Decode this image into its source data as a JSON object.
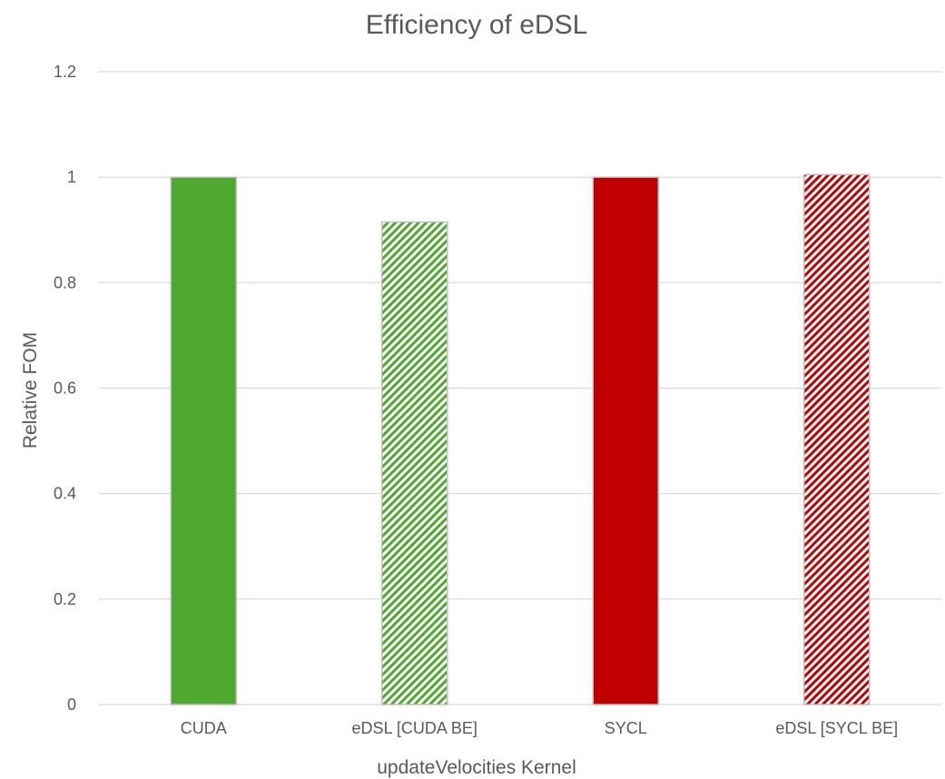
{
  "chart_data": {
    "type": "bar",
    "title": "Efficiency of eDSL",
    "xlabel": "updateVelocities Kernel",
    "ylabel": "Relative FOM",
    "ylim": [
      0,
      1.2
    ],
    "yticks": [
      "0",
      "0.2",
      "0.4",
      "0.6",
      "0.8",
      "1",
      "1.2"
    ],
    "grid": true,
    "legend": "none",
    "categories": [
      "CUDA",
      "eDSL [CUDA BE]",
      "SYCL",
      "eDSL [SYCL BE]"
    ],
    "values": [
      1.0,
      0.915,
      1.0,
      1.005
    ],
    "fills": [
      "solid",
      "hatched",
      "solid",
      "hatched"
    ],
    "colors": [
      "#4ea72e",
      "#4ea72e",
      "#c00000",
      "#c00000"
    ]
  },
  "colors": {
    "gridline": "#d9d9d9",
    "text": "#595959",
    "bar_border": "#bfbfbf"
  }
}
